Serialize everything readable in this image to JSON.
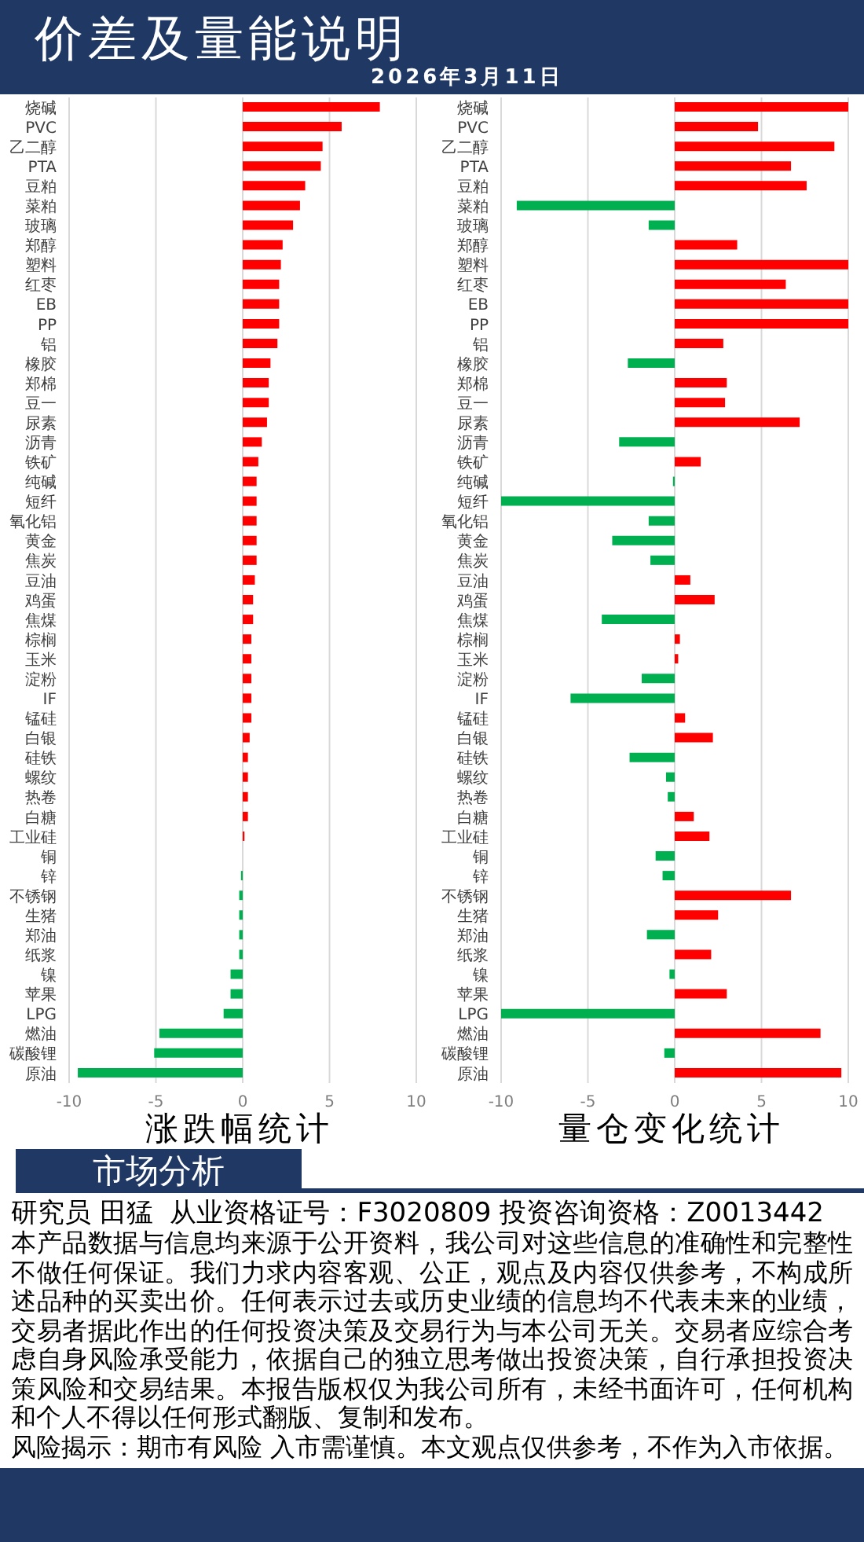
{
  "chart_data": [
    {
      "type": "other",
      "title": "价差及量能说明",
      "subtitle": "2026年3月11日"
    },
    {
      "type": "bar",
      "title": "涨跌幅统计",
      "orientation": "horizontal",
      "categories": [
        "烧碱",
        "PVC",
        "乙二醇",
        "PTA",
        "豆粕",
        "菜粕",
        "玻璃",
        "郑醇",
        "塑料",
        "红枣",
        "EB",
        "PP",
        "铝",
        "橡胶",
        "郑棉",
        "豆一",
        "尿素",
        "沥青",
        "铁矿",
        "纯碱",
        "短纤",
        "氧化铝",
        "黄金",
        "焦炭",
        "豆油",
        "鸡蛋",
        "焦煤",
        "棕榈",
        "玉米",
        "淀粉",
        "IF",
        "锰硅",
        "白银",
        "硅铁",
        "螺纹",
        "热卷",
        "白糖",
        "工业硅",
        "铜",
        "锌",
        "不锈钢",
        "生猪",
        "郑油",
        "纸浆",
        "镍",
        "苹果",
        "LPG",
        "燃油",
        "碳酸锂",
        "原油"
      ],
      "values": [
        7.9,
        5.7,
        4.6,
        4.5,
        3.6,
        3.3,
        2.9,
        2.3,
        2.2,
        2.1,
        2.1,
        2.1,
        2.0,
        1.6,
        1.5,
        1.5,
        1.4,
        1.1,
        0.9,
        0.8,
        0.8,
        0.8,
        0.8,
        0.8,
        0.7,
        0.6,
        0.6,
        0.5,
        0.5,
        0.5,
        0.5,
        0.5,
        0.4,
        0.3,
        0.3,
        0.3,
        0.3,
        0.1,
        0,
        -0.1,
        -0.2,
        -0.2,
        -0.2,
        -0.2,
        -0.7,
        -0.7,
        -1.1,
        -4.8,
        -5.1,
        -9.5
      ],
      "colors": [
        "#ff0000",
        "#ff0000",
        "#ff0000",
        "#ff0000",
        "#ff0000",
        "#ff0000",
        "#ff0000",
        "#ff0000",
        "#ff0000",
        "#ff0000",
        "#ff0000",
        "#ff0000",
        "#ff0000",
        "#ff0000",
        "#ff0000",
        "#ff0000",
        "#ff0000",
        "#ff0000",
        "#ff0000",
        "#ff0000",
        "#ff0000",
        "#ff0000",
        "#ff0000",
        "#ff0000",
        "#ff0000",
        "#ff0000",
        "#ff0000",
        "#ff0000",
        "#ff0000",
        "#ff0000",
        "#ff0000",
        "#ff0000",
        "#ff0000",
        "#ff0000",
        "#ff0000",
        "#ff0000",
        "#ff0000",
        "#ff0000",
        "#ff0000",
        "#00b050",
        "#00b050",
        "#00b050",
        "#00b050",
        "#00b050",
        "#00b050",
        "#00b050",
        "#00b050",
        "#00b050",
        "#00b050",
        "#00b050"
      ],
      "xlim": [
        -10,
        10
      ],
      "xticks": [
        -10,
        -5,
        0,
        5,
        10
      ],
      "grid": "x"
    },
    {
      "type": "bar",
      "title": "量仓变化统计",
      "orientation": "horizontal",
      "categories": [
        "烧碱",
        "PVC",
        "乙二醇",
        "PTA",
        "豆粕",
        "菜粕",
        "玻璃",
        "郑醇",
        "塑料",
        "红枣",
        "EB",
        "PP",
        "铝",
        "橡胶",
        "郑棉",
        "豆一",
        "尿素",
        "沥青",
        "铁矿",
        "纯碱",
        "短纤",
        "氧化铝",
        "黄金",
        "焦炭",
        "豆油",
        "鸡蛋",
        "焦煤",
        "棕榈",
        "玉米",
        "淀粉",
        "IF",
        "锰硅",
        "白银",
        "硅铁",
        "螺纹",
        "热卷",
        "白糖",
        "工业硅",
        "铜",
        "锌",
        "不锈钢",
        "生猪",
        "郑油",
        "纸浆",
        "镍",
        "苹果",
        "LPG",
        "燃油",
        "碳酸锂",
        "原油"
      ],
      "values": [
        10,
        4.8,
        9.2,
        6.7,
        7.6,
        -9.1,
        -1.5,
        3.6,
        10,
        6.4,
        10,
        10,
        2.8,
        -2.7,
        3.0,
        2.9,
        7.2,
        -3.2,
        1.5,
        -0.1,
        -10,
        -1.5,
        -3.6,
        -1.4,
        0.9,
        2.3,
        -4.2,
        0.3,
        0.2,
        -1.9,
        -6.0,
        0.6,
        2.2,
        -2.6,
        -0.5,
        -0.4,
        1.1,
        2.0,
        -1.1,
        -0.7,
        6.7,
        2.5,
        -1.6,
        2.1,
        -0.3,
        3.0,
        -10,
        8.4,
        -0.6,
        9.6
      ],
      "colors": [
        "#ff0000",
        "#ff0000",
        "#ff0000",
        "#ff0000",
        "#ff0000",
        "#00b050",
        "#00b050",
        "#ff0000",
        "#ff0000",
        "#ff0000",
        "#ff0000",
        "#ff0000",
        "#ff0000",
        "#00b050",
        "#ff0000",
        "#ff0000",
        "#ff0000",
        "#00b050",
        "#ff0000",
        "#00b050",
        "#00b050",
        "#00b050",
        "#00b050",
        "#00b050",
        "#ff0000",
        "#ff0000",
        "#00b050",
        "#ff0000",
        "#ff0000",
        "#00b050",
        "#00b050",
        "#ff0000",
        "#ff0000",
        "#00b050",
        "#00b050",
        "#00b050",
        "#ff0000",
        "#ff0000",
        "#00b050",
        "#00b050",
        "#ff0000",
        "#ff0000",
        "#00b050",
        "#ff0000",
        "#00b050",
        "#ff0000",
        "#00b050",
        "#ff0000",
        "#00b050",
        "#ff0000"
      ],
      "xlim": [
        -10,
        10
      ],
      "xticks": [
        -10,
        -5,
        0,
        5,
        10
      ],
      "grid": "x"
    },
    {
      "type": "other",
      "title": "市场分析",
      "annotations": [
        "研究员 田猛  从业资格证号：F3020809 投资咨询资格：Z0013442",
        "本产品数据与信息均来源于公开资料，我公司对这些信息的准确性和完整性不做任何保证。我们力求内容客观、公正，观点及内容仅供参考，不构成所述品种的买卖出价。任何表示过去或历史业绩的信息均不代表未来的业绩，交易者据此作出的任何投资决策及交易行为与本公司无关。交易者应综合考虑自身风险承受能力，依据自己的独立思考做出投资决策，自行承担投资决策风险和交易结果。本报告版权仅为我公司所有，未经书面许可，任何机构和个人不得以任何形式翻版、复制和发布。",
        "风险揭示：期市有风险 入市需谨慎。本文观点仅供参考，不作为入市依据。"
      ]
    }
  ]
}
